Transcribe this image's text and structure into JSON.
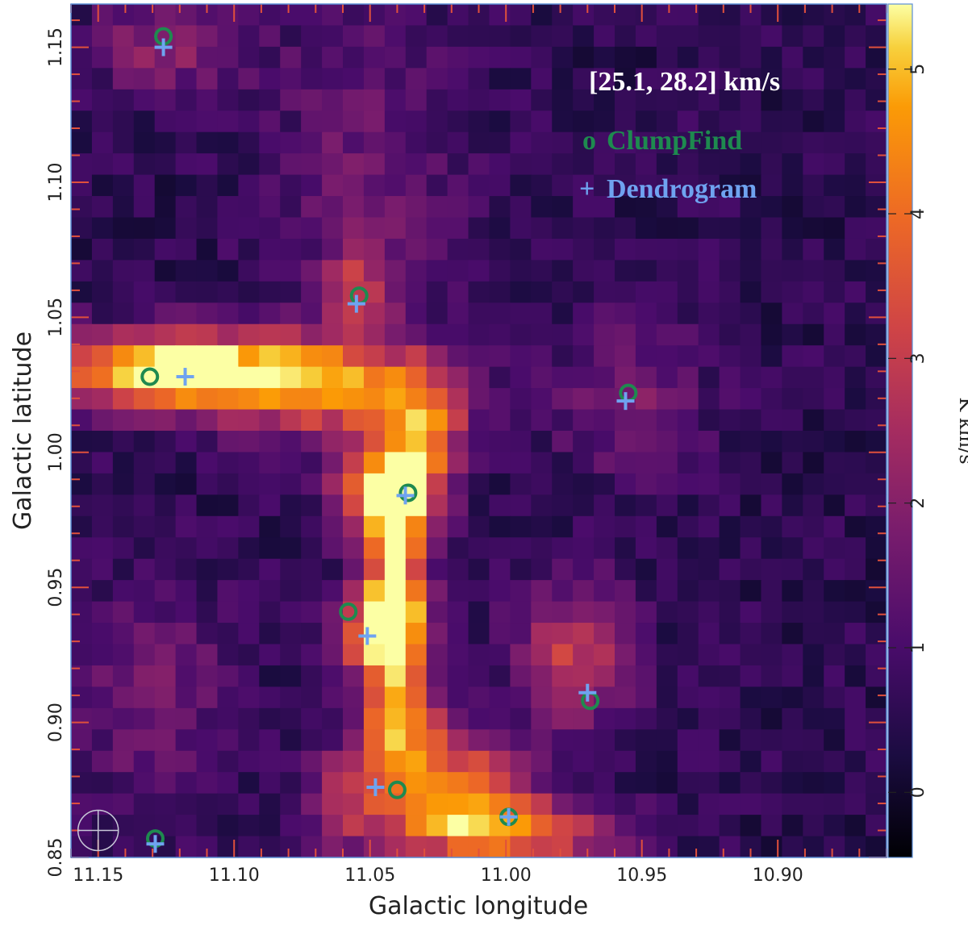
{
  "chart_data": {
    "type": "heatmap",
    "title": "[25.1, 28.2] km/s",
    "xlabel": "Galactic longitude",
    "ylabel": "Galactic latitude",
    "xlim": [
      11.16,
      10.86
    ],
    "ylim": [
      0.85,
      1.166
    ],
    "xticks": [
      "11.15",
      "11.10",
      "11.05",
      "11.00",
      "10.95",
      "10.90"
    ],
    "yticks": [
      "0.85",
      "0.90",
      "0.95",
      "1.00",
      "1.05",
      "1.10",
      "1.15"
    ],
    "colorbar": {
      "label": "K km/s",
      "range": [
        -0.45,
        5.45
      ],
      "ticks": [
        "0",
        "1",
        "2",
        "3",
        "4",
        "5"
      ]
    },
    "grid": "39x40 pixels",
    "emission_components": [
      {
        "l": 11.13,
        "b": 1.03,
        "peak": 3.5,
        "sl": 0.025,
        "sb": 0.01
      },
      {
        "l": 11.1,
        "b": 1.03,
        "peak": 3.2,
        "sl": 0.035,
        "sb": 0.01
      },
      {
        "l": 11.06,
        "b": 1.022,
        "peak": 2.6,
        "sl": 0.03,
        "sb": 0.012
      },
      {
        "l": 11.045,
        "b": 0.985,
        "peak": 4.8,
        "sl": 0.012,
        "sb": 0.012
      },
      {
        "l": 11.03,
        "b": 1.005,
        "peak": 3.0,
        "sl": 0.01,
        "sb": 0.015
      },
      {
        "l": 11.045,
        "b": 0.935,
        "peak": 5.0,
        "sl": 0.01,
        "sb": 0.012
      },
      {
        "l": 11.04,
        "b": 0.96,
        "peak": 3.8,
        "sl": 0.007,
        "sb": 0.02
      },
      {
        "l": 11.04,
        "b": 0.9,
        "peak": 3.6,
        "sl": 0.01,
        "sb": 0.02
      },
      {
        "l": 11.02,
        "b": 0.875,
        "peak": 3.5,
        "sl": 0.018,
        "sb": 0.015
      },
      {
        "l": 10.995,
        "b": 0.86,
        "peak": 3.4,
        "sl": 0.025,
        "sb": 0.008
      },
      {
        "l": 10.975,
        "b": 0.925,
        "peak": 2.4,
        "sl": 0.015,
        "sb": 0.018
      },
      {
        "l": 11.055,
        "b": 1.06,
        "peak": 2.0,
        "sl": 0.008,
        "sb": 0.01
      },
      {
        "l": 11.05,
        "b": 1.1,
        "peak": 1.0,
        "sl": 0.025,
        "sb": 0.05
      },
      {
        "l": 11.125,
        "b": 1.15,
        "peak": 1.6,
        "sl": 0.02,
        "sb": 0.012
      },
      {
        "l": 10.955,
        "b": 1.02,
        "peak": 1.2,
        "sl": 0.02,
        "sb": 0.02
      },
      {
        "l": 11.13,
        "b": 0.91,
        "peak": 1.2,
        "sl": 0.02,
        "sb": 0.03
      },
      {
        "l": 11.06,
        "b": 0.87,
        "peak": 1.8,
        "sl": 0.01,
        "sb": 0.015
      }
    ],
    "markers": {
      "ClumpFind": {
        "symbol": "circle",
        "color": "#1e8a4f",
        "points": [
          {
            "l": 11.126,
            "b": 1.154
          },
          {
            "l": 11.054,
            "b": 1.058
          },
          {
            "l": 11.131,
            "b": 1.028
          },
          {
            "l": 10.955,
            "b": 1.022
          },
          {
            "l": 11.036,
            "b": 0.985
          },
          {
            "l": 11.058,
            "b": 0.941
          },
          {
            "l": 10.969,
            "b": 0.908
          },
          {
            "l": 11.04,
            "b": 0.875
          },
          {
            "l": 10.999,
            "b": 0.865
          },
          {
            "l": 11.129,
            "b": 0.857
          }
        ]
      },
      "Dendrogram": {
        "symbol": "plus",
        "color": "#6fa3f0",
        "points": [
          {
            "l": 11.126,
            "b": 1.15
          },
          {
            "l": 11.055,
            "b": 1.055
          },
          {
            "l": 11.118,
            "b": 1.028
          },
          {
            "l": 10.956,
            "b": 1.019
          },
          {
            "l": 11.037,
            "b": 0.984
          },
          {
            "l": 11.051,
            "b": 0.932
          },
          {
            "l": 10.97,
            "b": 0.911
          },
          {
            "l": 11.048,
            "b": 0.876
          },
          {
            "l": 10.999,
            "b": 0.865
          },
          {
            "l": 11.129,
            "b": 0.855
          }
        ]
      }
    },
    "legend": {
      "position": "top-right",
      "entries": [
        {
          "symbol": "o",
          "label": "ClumpFind",
          "color": "#1e8a4f"
        },
        {
          "symbol": "+",
          "label": "Dendrogram",
          "color": "#6fa3f0"
        }
      ]
    },
    "beam_symbol": "circle with cross, bottom-left"
  }
}
